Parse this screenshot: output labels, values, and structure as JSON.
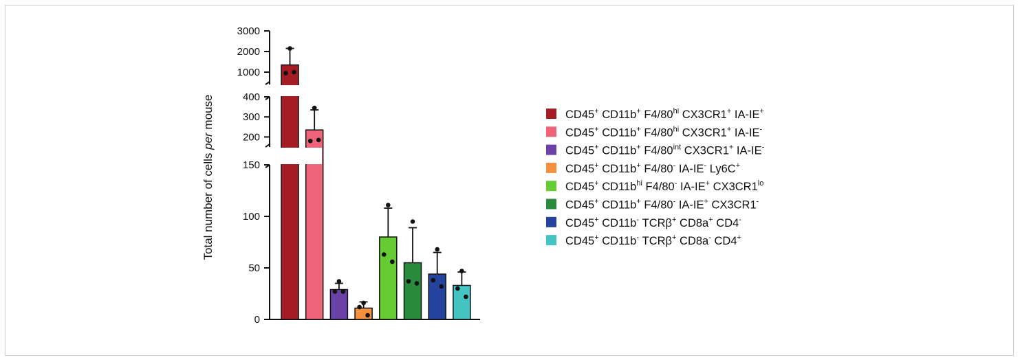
{
  "chart_data": {
    "type": "bar",
    "title": "",
    "xlabel": "",
    "ylabel": "Total number of  cells per mouse",
    "ylabel_parts": [
      {
        "text": "Total number of  cells ",
        "italic": false
      },
      {
        "text": "per",
        "italic": true
      },
      {
        "text": " mouse",
        "italic": false
      }
    ],
    "y_scale": "broken",
    "y_segments": [
      {
        "range": [
          0,
          150
        ],
        "ticks": [
          "0",
          "50",
          "100",
          "150"
        ]
      },
      {
        "range": [
          150,
          400
        ],
        "ticks": [
          "200",
          "300",
          "400"
        ]
      },
      {
        "range": [
          400,
          3000
        ],
        "ticks": [
          "1000",
          "2000",
          "3000"
        ]
      }
    ],
    "legend_position": "right",
    "series": [
      {
        "name": "CD45+ CD11b+ F4/80hi CX3CR1+ IA-IE+",
        "color": "#a51c24",
        "mean": 1350,
        "error": 800,
        "points": [
          2150,
          950,
          1000
        ],
        "label": [
          [
            "CD45",
            ""
          ],
          [
            "+",
            "sup"
          ],
          [
            " CD11b",
            ""
          ],
          [
            "+",
            "sup"
          ],
          [
            " F4/80",
            ""
          ],
          [
            "hi",
            "sup"
          ],
          [
            " CX3CR1",
            ""
          ],
          [
            "+",
            "sup"
          ],
          [
            " IA-IE",
            ""
          ],
          [
            "+",
            "sup"
          ]
        ]
      },
      {
        "name": "CD45+ CD11b+ F4/80hi CX3CR1+ IA-IE-",
        "color": "#f0647a",
        "mean": 235,
        "error": 100,
        "points": [
          345,
          180,
          185
        ],
        "label": [
          [
            "CD45",
            ""
          ],
          [
            "+",
            "sup"
          ],
          [
            " CD11b",
            ""
          ],
          [
            "+",
            "sup"
          ],
          [
            " F4/80",
            ""
          ],
          [
            "hi",
            "sup"
          ],
          [
            " CX3CR1",
            ""
          ],
          [
            "+",
            "sup"
          ],
          [
            " IA-IE",
            ""
          ],
          [
            "-",
            "sup"
          ]
        ]
      },
      {
        "name": "CD45+ CD11b+ F4/80int CX3CR1+ IA-IE-",
        "color": "#6a41a7",
        "mean": 29,
        "error": 6,
        "points": [
          37,
          27,
          27
        ],
        "label": [
          [
            "CD45",
            ""
          ],
          [
            "+",
            "sup"
          ],
          [
            " CD11b",
            ""
          ],
          [
            "+",
            "sup"
          ],
          [
            " F4/80",
            ""
          ],
          [
            "int",
            "sup"
          ],
          [
            " CX3CR1",
            ""
          ],
          [
            "+",
            "sup"
          ],
          [
            " IA-IE",
            ""
          ],
          [
            "-",
            "sup"
          ]
        ]
      },
      {
        "name": "CD45+ CD11b+ F4/80- IA-IE- Ly6C+",
        "color": "#f5913e",
        "mean": 11,
        "error": 6,
        "points": [
          16,
          12,
          4
        ],
        "label": [
          [
            "CD45",
            ""
          ],
          [
            "+",
            "sup"
          ],
          [
            " CD11b",
            ""
          ],
          [
            "+",
            "sup"
          ],
          [
            " F4/80",
            ""
          ],
          [
            "-",
            "sup"
          ],
          [
            " IA-IE",
            ""
          ],
          [
            "-",
            "sup"
          ],
          [
            " Ly6C",
            ""
          ],
          [
            "+",
            "sup"
          ]
        ]
      },
      {
        "name": "CD45+ CD11bhi F4/80- IA-IE+ CX3CR1lo",
        "color": "#66cc33",
        "mean": 80,
        "error": 28,
        "points": [
          111,
          63,
          56
        ],
        "label": [
          [
            "CD45",
            ""
          ],
          [
            "+",
            "sup"
          ],
          [
            " CD11b",
            ""
          ],
          [
            "hi",
            "sup"
          ],
          [
            " F4/80",
            ""
          ],
          [
            "-",
            "sup"
          ],
          [
            " IA-IE",
            ""
          ],
          [
            "+",
            "sup"
          ],
          [
            " CX3CR1",
            ""
          ],
          [
            "lo",
            "sup"
          ]
        ]
      },
      {
        "name": "CD45+ CD11b+ F4/80- IA-IE+ CX3CR1-",
        "color": "#2a8b3d",
        "mean": 55,
        "error": 34,
        "points": [
          95,
          37,
          35
        ],
        "label": [
          [
            "CD45",
            ""
          ],
          [
            "+",
            "sup"
          ],
          [
            " CD11b",
            ""
          ],
          [
            "+",
            "sup"
          ],
          [
            " F4/80",
            ""
          ],
          [
            "-",
            "sup"
          ],
          [
            " IA-IE",
            ""
          ],
          [
            "+",
            "sup"
          ],
          [
            " CX3CR1",
            ""
          ],
          [
            "-",
            "sup"
          ]
        ]
      },
      {
        "name": "CD45+ CD11b- TCRβ+ CD8a+ CD4-",
        "color": "#25439c",
        "mean": 44,
        "error": 21,
        "points": [
          68,
          38,
          32
        ],
        "label": [
          [
            "CD45",
            ""
          ],
          [
            "+",
            "sup"
          ],
          [
            " CD11b",
            ""
          ],
          [
            "-",
            "sup"
          ],
          [
            " TCRβ",
            ""
          ],
          [
            "+",
            "sup"
          ],
          [
            " CD8a",
            ""
          ],
          [
            "+",
            "sup"
          ],
          [
            " CD4",
            ""
          ],
          [
            "-",
            "sup"
          ]
        ]
      },
      {
        "name": "CD45+ CD11b- TCRβ+ CD8a- CD4+",
        "color": "#45c4c4",
        "mean": 33,
        "error": 13,
        "points": [
          47,
          30,
          22
        ],
        "label": [
          [
            "CD45",
            ""
          ],
          [
            "+",
            "sup"
          ],
          [
            " CD11b",
            ""
          ],
          [
            "-",
            "sup"
          ],
          [
            " TCRβ",
            ""
          ],
          [
            "+",
            "sup"
          ],
          [
            " CD8a",
            ""
          ],
          [
            "-",
            "sup"
          ],
          [
            " CD4",
            ""
          ],
          [
            "+",
            "sup"
          ]
        ]
      }
    ]
  }
}
